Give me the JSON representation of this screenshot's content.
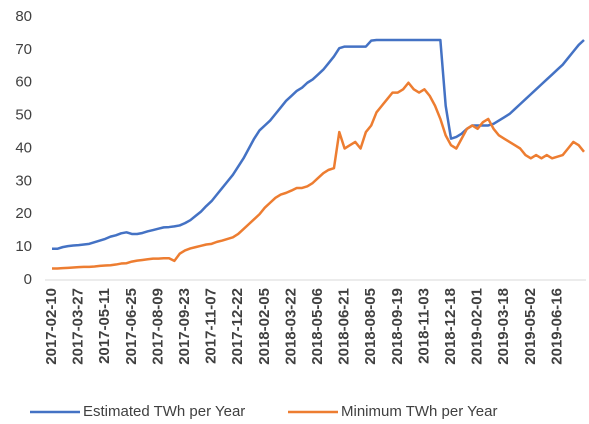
{
  "chart_data": {
    "type": "line",
    "categories": [
      "2017-02-10",
      null,
      null,
      null,
      null,
      "2017-03-27",
      null,
      null,
      null,
      null,
      "2017-05-11",
      null,
      null,
      null,
      null,
      "2017-06-25",
      null,
      null,
      null,
      null,
      "2017-08-09",
      null,
      null,
      null,
      null,
      "2017-09-23",
      null,
      null,
      null,
      null,
      "2017-11-07",
      null,
      null,
      null,
      null,
      "2017-12-22",
      null,
      null,
      null,
      null,
      "2018-02-05",
      null,
      null,
      null,
      null,
      "2018-03-22",
      null,
      null,
      null,
      null,
      "2018-05-06",
      null,
      null,
      null,
      null,
      "2018-06-21",
      null,
      null,
      null,
      null,
      "2018-08-05",
      null,
      null,
      null,
      null,
      "2018-09-19",
      null,
      null,
      null,
      null,
      "2018-11-03",
      null,
      null,
      null,
      null,
      "2018-12-18",
      null,
      null,
      null,
      null,
      "2019-02-01",
      null,
      null,
      null,
      null,
      "2019-03-18",
      null,
      null,
      null,
      null,
      "2019-05-02",
      null,
      null,
      null,
      null,
      "2019-06-16",
      null,
      null,
      null,
      null,
      null
    ],
    "series": [
      {
        "name": "Estimated TWh per Year",
        "color": "#4472c4",
        "values": [
          9.5,
          9.5,
          10,
          10.3,
          10.5,
          10.6,
          10.8,
          11,
          11.5,
          12,
          12.5,
          13.2,
          13.6,
          14.2,
          14.5,
          14,
          14,
          14.3,
          14.8,
          15.2,
          15.6,
          16,
          16.1,
          16.3,
          16.6,
          17.3,
          18.2,
          19.5,
          20.8,
          22.5,
          24,
          26,
          28,
          30,
          32,
          34.5,
          37,
          40,
          43,
          45.5,
          47,
          48.5,
          50.5,
          52.5,
          54.5,
          56,
          57.5,
          58.5,
          60,
          61,
          62.5,
          64,
          66,
          68,
          70.5,
          71,
          71,
          71,
          71,
          71,
          72.8,
          73,
          73,
          73,
          73,
          73,
          73,
          73,
          73,
          73,
          73,
          73,
          73,
          73,
          53,
          43,
          43.5,
          44.5,
          46,
          47,
          47,
          47,
          47,
          47.5,
          48.5,
          49.5,
          50.5,
          52,
          53.5,
          55,
          56.5,
          58,
          59.5,
          61,
          62.5,
          64,
          65.5,
          67.5,
          69.5,
          71.5,
          73
        ]
      },
      {
        "name": "Minimum TWh per Year",
        "color": "#ed7d31",
        "values": [
          3.5,
          3.5,
          3.6,
          3.7,
          3.8,
          3.9,
          4,
          4,
          4.1,
          4.3,
          4.4,
          4.5,
          4.7,
          5,
          5.1,
          5.6,
          5.9,
          6.1,
          6.3,
          6.5,
          6.5,
          6.6,
          6.6,
          5.8,
          8,
          9,
          9.6,
          10,
          10.4,
          10.8,
          11,
          11.6,
          12,
          12.5,
          13,
          14,
          15.5,
          17,
          18.5,
          20,
          22,
          23.5,
          25,
          26,
          26.5,
          27.2,
          28,
          28,
          28.5,
          29.5,
          31,
          32.5,
          33.5,
          34,
          45,
          40,
          41,
          42,
          40,
          45,
          47,
          51,
          53,
          55,
          57,
          57,
          58,
          60,
          58,
          57,
          58,
          56,
          53,
          49,
          44,
          41,
          40,
          43,
          46,
          47,
          46,
          48,
          49,
          46,
          44,
          43,
          42,
          41,
          40,
          38,
          37,
          38,
          37,
          38,
          37,
          37.5,
          38,
          40,
          42,
          41,
          39
        ]
      }
    ],
    "ylim": [
      0,
      80
    ],
    "yticks": [
      0,
      10,
      20,
      30,
      40,
      50,
      60,
      70,
      80
    ],
    "grid": false,
    "legend": "bottom"
  }
}
